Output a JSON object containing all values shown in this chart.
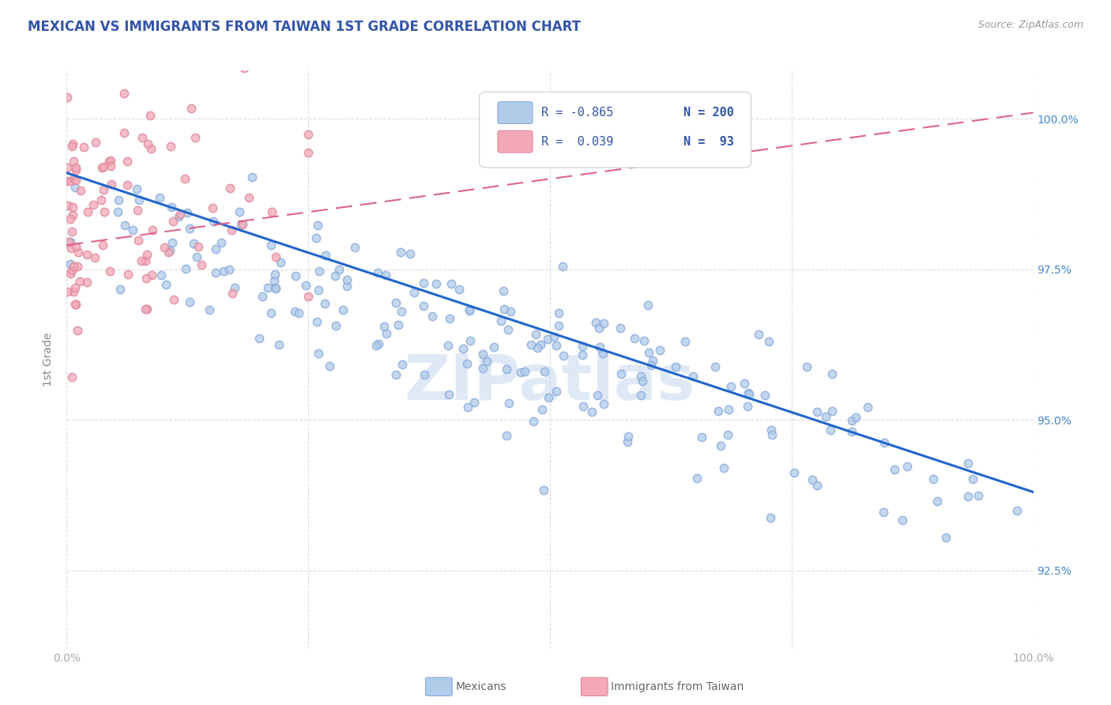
{
  "title": "MEXICAN VS IMMIGRANTS FROM TAIWAN 1ST GRADE CORRELATION CHART",
  "source_text": "Source: ZipAtlas.com",
  "ylabel": "1st Grade",
  "watermark": "ZIPatlas",
  "xlim": [
    0.0,
    1.0
  ],
  "ylim": [
    0.912,
    1.008
  ],
  "yticks": [
    0.925,
    0.95,
    0.975,
    1.0
  ],
  "ytick_labels": [
    "92.5%",
    "95.0%",
    "97.5%",
    "100.0%"
  ],
  "title_color": "#3355aa",
  "axis_label_color": "#888888",
  "tick_color": "#aaaaaa",
  "right_tick_color": "#4488cc",
  "blue_dot_color": "#b0cce8",
  "pink_dot_color": "#f4a8b8",
  "blue_line_color": "#2266cc",
  "pink_line_color": "#dd6688",
  "background_color": "#ffffff",
  "grid_color": "#dddddd",
  "n_blue": 200,
  "n_pink": 93,
  "r_blue": -0.865,
  "r_pink": 0.039,
  "seed_blue": 42,
  "seed_pink": 77,
  "dot_size": 55,
  "dot_alpha": 0.75,
  "dot_linewidth": 1.2,
  "dot_edgecolor_blue": "#88aadd",
  "dot_edgecolor_pink": "#dd8899",
  "legend_r1": "R = -0.865",
  "legend_n1": "N = 200",
  "legend_r2": "R =  0.039",
  "legend_n2": "N =  93",
  "legend_r_color": "#3355aa",
  "legend_n_color": "#3355aa"
}
